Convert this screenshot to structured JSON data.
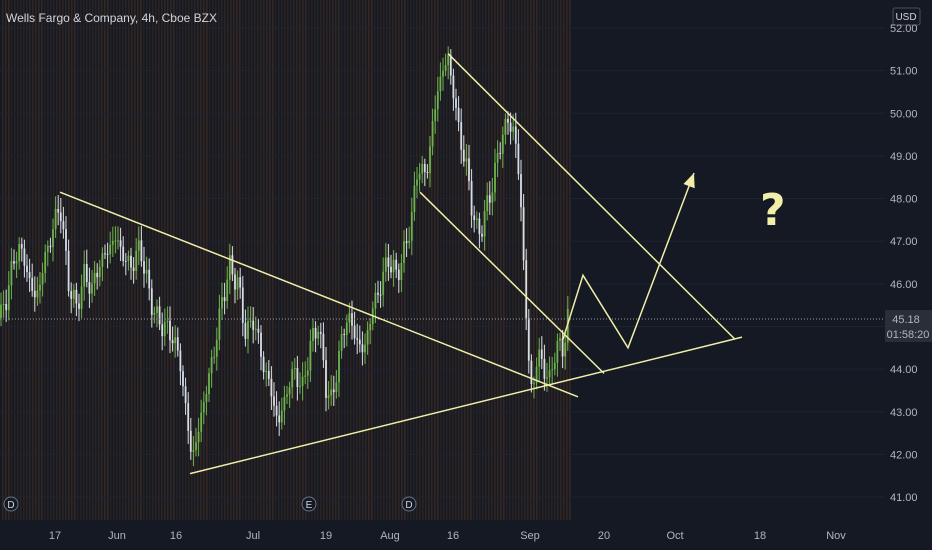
{
  "title": "Wells Fargo & Company, 4h, Cboe BZX",
  "currency": "USD",
  "last_price": "45.18",
  "countdown": "01:58:20",
  "question_mark": "?",
  "event_markers": [
    "D",
    "E",
    "D"
  ],
  "colors": {
    "background": "#151924",
    "up": "#6fb34d",
    "down": "#d9dee6",
    "trendline": "#f0eea8",
    "volume_band": "#5a3a1f",
    "price_badge": "#2a2e39"
  },
  "chart_data": {
    "type": "candlestick",
    "symbol": "Wells Fargo & Company",
    "interval": "4h",
    "exchange": "Cboe BZX",
    "y_range": [
      40.5,
      52.4
    ],
    "y_ticks": [
      "52.00",
      "51.00",
      "50.00",
      "49.00",
      "48.00",
      "47.00",
      "46.00",
      "45.00",
      "44.00",
      "43.00",
      "42.00",
      "41.00"
    ],
    "x_ticks": [
      "17",
      "Jun",
      "16",
      "Jul",
      "19",
      "Aug",
      "16",
      "Sep",
      "20",
      "Oct",
      "18",
      "Nov"
    ],
    "price_anchors": [
      {
        "x": 0,
        "y": 45.2
      },
      {
        "x": 6,
        "y": 45.6
      },
      {
        "x": 12,
        "y": 46.4
      },
      {
        "x": 20,
        "y": 46.9
      },
      {
        "x": 28,
        "y": 46.2
      },
      {
        "x": 36,
        "y": 45.6
      },
      {
        "x": 44,
        "y": 46.5
      },
      {
        "x": 52,
        "y": 47.2
      },
      {
        "x": 60,
        "y": 47.9
      },
      {
        "x": 68,
        "y": 46.1
      },
      {
        "x": 76,
        "y": 45.4
      },
      {
        "x": 84,
        "y": 46.2
      },
      {
        "x": 92,
        "y": 45.9
      },
      {
        "x": 100,
        "y": 46.5
      },
      {
        "x": 108,
        "y": 46.8
      },
      {
        "x": 116,
        "y": 47.1
      },
      {
        "x": 124,
        "y": 46.6
      },
      {
        "x": 132,
        "y": 46.4
      },
      {
        "x": 140,
        "y": 46.9
      },
      {
        "x": 148,
        "y": 45.9
      },
      {
        "x": 156,
        "y": 45.2
      },
      {
        "x": 164,
        "y": 45.0
      },
      {
        "x": 172,
        "y": 44.8
      },
      {
        "x": 180,
        "y": 44.2
      },
      {
        "x": 186,
        "y": 43.0
      },
      {
        "x": 192,
        "y": 41.9
      },
      {
        "x": 198,
        "y": 42.5
      },
      {
        "x": 206,
        "y": 43.5
      },
      {
        "x": 214,
        "y": 44.4
      },
      {
        "x": 222,
        "y": 45.6
      },
      {
        "x": 230,
        "y": 46.4
      },
      {
        "x": 238,
        "y": 46.0
      },
      {
        "x": 246,
        "y": 44.8
      },
      {
        "x": 254,
        "y": 45.2
      },
      {
        "x": 262,
        "y": 44.2
      },
      {
        "x": 270,
        "y": 43.6
      },
      {
        "x": 278,
        "y": 42.7
      },
      {
        "x": 286,
        "y": 43.4
      },
      {
        "x": 294,
        "y": 44.0
      },
      {
        "x": 302,
        "y": 43.5
      },
      {
        "x": 310,
        "y": 44.5
      },
      {
        "x": 318,
        "y": 45.1
      },
      {
        "x": 326,
        "y": 43.6
      },
      {
        "x": 332,
        "y": 43.2
      },
      {
        "x": 340,
        "y": 44.5
      },
      {
        "x": 348,
        "y": 45.3
      },
      {
        "x": 356,
        "y": 44.7
      },
      {
        "x": 364,
        "y": 44.4
      },
      {
        "x": 372,
        "y": 45.4
      },
      {
        "x": 380,
        "y": 45.9
      },
      {
        "x": 388,
        "y": 46.6
      },
      {
        "x": 396,
        "y": 46.2
      },
      {
        "x": 404,
        "y": 46.7
      },
      {
        "x": 412,
        "y": 47.6
      },
      {
        "x": 418,
        "y": 48.8
      },
      {
        "x": 426,
        "y": 48.5
      },
      {
        "x": 432,
        "y": 49.6
      },
      {
        "x": 438,
        "y": 50.6
      },
      {
        "x": 444,
        "y": 51.1
      },
      {
        "x": 448,
        "y": 51.3
      },
      {
        "x": 454,
        "y": 50.4
      },
      {
        "x": 460,
        "y": 49.4
      },
      {
        "x": 466,
        "y": 48.8
      },
      {
        "x": 472,
        "y": 47.8
      },
      {
        "x": 478,
        "y": 47.1
      },
      {
        "x": 486,
        "y": 47.7
      },
      {
        "x": 494,
        "y": 48.5
      },
      {
        "x": 502,
        "y": 49.5
      },
      {
        "x": 508,
        "y": 49.8
      },
      {
        "x": 514,
        "y": 49.6
      },
      {
        "x": 520,
        "y": 48.3
      },
      {
        "x": 524,
        "y": 46.3
      },
      {
        "x": 528,
        "y": 44.4
      },
      {
        "x": 532,
        "y": 43.4
      },
      {
        "x": 538,
        "y": 44.4
      },
      {
        "x": 544,
        "y": 44.0
      },
      {
        "x": 550,
        "y": 43.7
      },
      {
        "x": 556,
        "y": 44.6
      },
      {
        "x": 562,
        "y": 44.4
      },
      {
        "x": 568,
        "y": 45.2
      }
    ],
    "trendlines": [
      {
        "name": "upper-descending",
        "x1": 60,
        "y1": 48.15,
        "x2": 578,
        "y2": 43.35
      },
      {
        "name": "lower-ascending",
        "x1": 190,
        "y1": 41.55,
        "x2": 742,
        "y2": 44.75
      },
      {
        "name": "channel-top",
        "x1": 448,
        "y1": 51.4,
        "x2": 735,
        "y2": 44.7
      },
      {
        "name": "channel-bottom",
        "x1": 420,
        "y1": 48.15,
        "x2": 604,
        "y2": 43.9
      }
    ],
    "projection_path": [
      {
        "x": 563,
        "y": 44.7
      },
      {
        "x": 583,
        "y": 46.2
      },
      {
        "x": 628,
        "y": 44.5
      },
      {
        "x": 694,
        "y": 48.6
      }
    ]
  }
}
